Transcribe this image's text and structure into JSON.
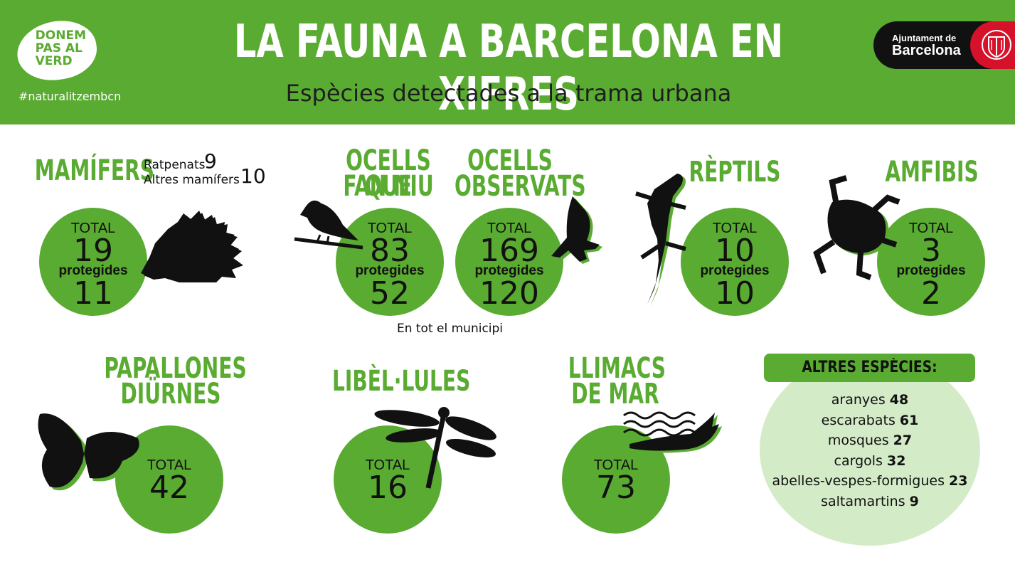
{
  "header": {
    "title": "LA FAUNA A BARCELONA EN XIFRES",
    "subtitle": "Espècies detectades a la trama urbana",
    "hashtag": "#naturalitzembcn",
    "logo_text": [
      "DONEM",
      "PAS AL",
      "VERD"
    ],
    "ajuntament_line1": "Ajuntament de",
    "ajuntament_line2": "Barcelona"
  },
  "colors": {
    "green": "#5aab31",
    "light_green": "#d4ebc7",
    "black": "#111111",
    "red": "#d6112a"
  },
  "labels": {
    "total": "TOTAL",
    "protegides": "protegides",
    "municipi_note": "En tot el municipi"
  },
  "mamifers": {
    "title": "MAMÍFERS",
    "ratpenats_label": "Ratpenats",
    "ratpenats": "9",
    "altres_label": "Altres mamífers",
    "altres": "10",
    "total": "19",
    "protegides": "11",
    "icon": "hedgehog-icon"
  },
  "ocells_niu": {
    "title_line1": "OCELLS QUE",
    "title_line2": "FAN NIU",
    "total": "83",
    "protegides": "52",
    "icon": "sparrow-icon"
  },
  "ocells_obs": {
    "title_line1": "OCELLS",
    "title_line2": "OBSERVATS",
    "total": "169",
    "protegides": "120",
    "icon": "flying-bird-icon"
  },
  "reptils": {
    "title": "RÈPTILS",
    "total": "10",
    "protegides": "10",
    "icon": "lizard-icon"
  },
  "amfibis": {
    "title": "AMFIBIS",
    "total": "3",
    "protegides": "2",
    "icon": "frog-icon"
  },
  "papallones": {
    "title_line1": "PAPALLONES",
    "title_line2": "DIÜRNES",
    "total": "42",
    "icon": "butterfly-icon"
  },
  "libelules": {
    "title": "LIBÈL·LULES",
    "total": "16",
    "icon": "dragonfly-icon"
  },
  "llimacs": {
    "title_line1": "LLIMACS",
    "title_line2": "DE MAR",
    "total": "73",
    "icon": "sea-slug-icon"
  },
  "altres": {
    "title": "ALTRES ESPÈCIES:",
    "items": [
      {
        "name": "aranyes",
        "value": "48"
      },
      {
        "name": "escarabats",
        "value": "61"
      },
      {
        "name": "mosques",
        "value": "27"
      },
      {
        "name": "cargols",
        "value": "32"
      },
      {
        "name": "abelles-vespes-formigues",
        "value": "23"
      },
      {
        "name": "saltamartins",
        "value": "9"
      }
    ]
  }
}
